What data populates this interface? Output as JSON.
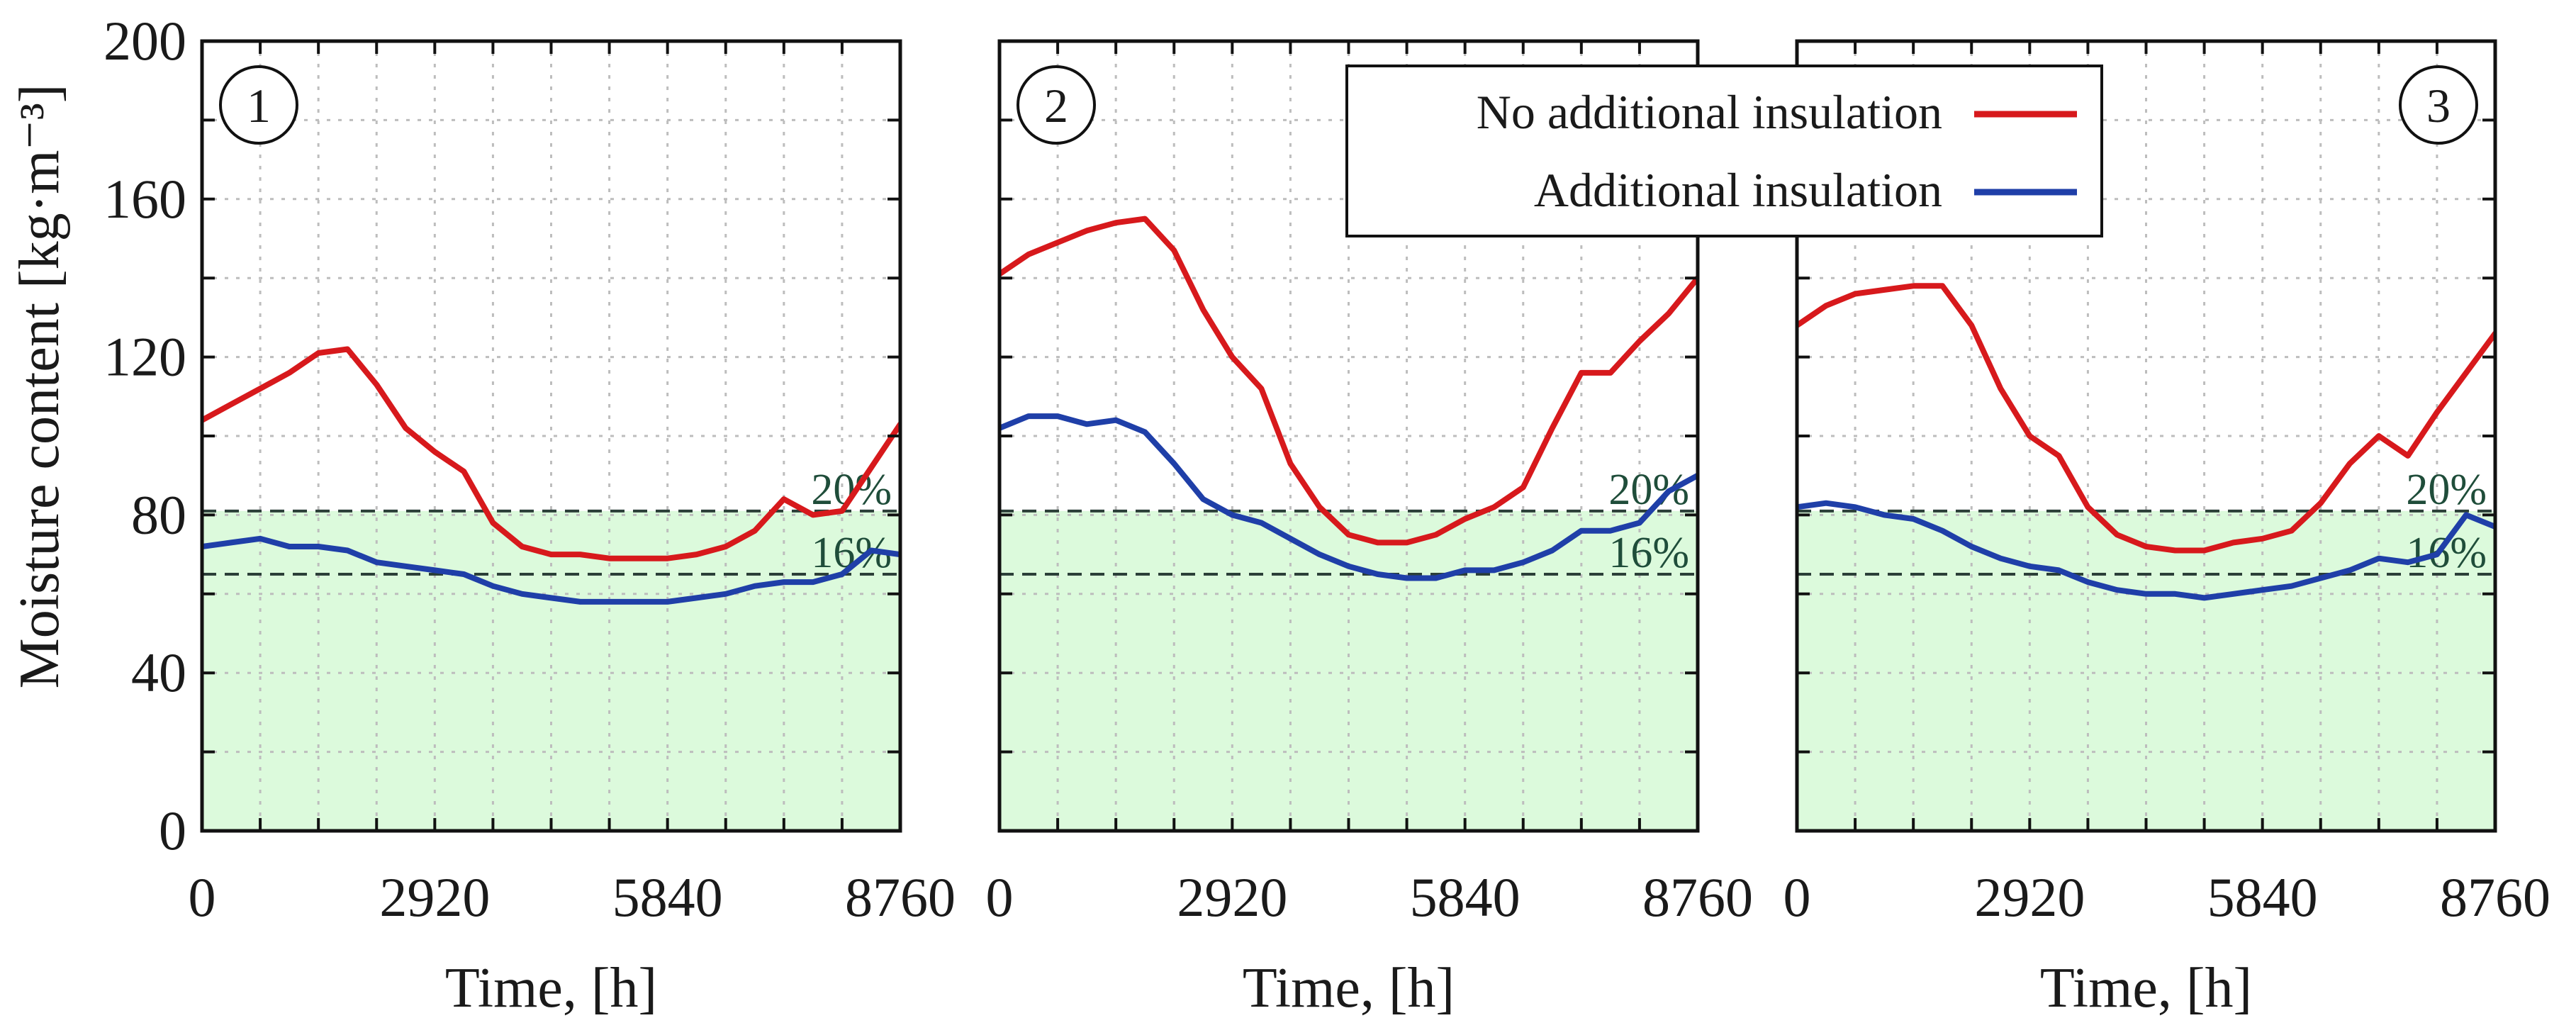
{
  "chart_data": {
    "type": "line",
    "xlabel": "Time, [h]",
    "ylabel": "Moisture content [kg·m⁻³]",
    "xlim": [
      0,
      8760
    ],
    "ylim": [
      0,
      200
    ],
    "xticks": [
      0,
      2920,
      5840,
      8760
    ],
    "xtick_labels": [
      "0",
      "2920",
      "5840",
      "8760"
    ],
    "yticks": [
      0,
      40,
      80,
      120,
      160,
      200
    ],
    "ytick_labels": [
      "0",
      "40",
      "80",
      "120",
      "160",
      "200"
    ],
    "grid": true,
    "legend": {
      "position": "top-center",
      "entries": [
        {
          "label": "No additional insulation",
          "color": "#d7191c"
        },
        {
          "label": "Additional insulation",
          "color": "#1f3fa8"
        }
      ]
    },
    "shaded_region": {
      "from": 0,
      "to": 81,
      "color": "#dcfadc"
    },
    "thresholds": [
      {
        "label": "20%",
        "value": 81
      },
      {
        "label": "16%",
        "value": 65
      }
    ],
    "panels": [
      {
        "label": "1",
        "series": [
          {
            "name": "No additional insulation",
            "x": [
              0,
              365,
              730,
              1095,
              1460,
              1825,
              2190,
              2555,
              2920,
              3285,
              3650,
              4015,
              4380,
              4745,
              5110,
              5475,
              5840,
              6205,
              6570,
              6935,
              7300,
              7665,
              8030,
              8395,
              8760
            ],
            "y": [
              104,
              108,
              112,
              116,
              121,
              122,
              113,
              102,
              96,
              91,
              78,
              72,
              70,
              70,
              69,
              69,
              69,
              70,
              72,
              76,
              84,
              80,
              81,
              92,
              103
            ]
          },
          {
            "name": "Additional insulation",
            "x": [
              0,
              365,
              730,
              1095,
              1460,
              1825,
              2190,
              2555,
              2920,
              3285,
              3650,
              4015,
              4380,
              4745,
              5110,
              5475,
              5840,
              6205,
              6570,
              6935,
              7300,
              7665,
              8030,
              8395,
              8760
            ],
            "y": [
              72,
              73,
              74,
              72,
              72,
              71,
              68,
              67,
              66,
              65,
              62,
              60,
              59,
              58,
              58,
              58,
              58,
              59,
              60,
              62,
              63,
              63,
              65,
              71,
              70
            ]
          }
        ]
      },
      {
        "label": "2",
        "series": [
          {
            "name": "No additional insulation",
            "x": [
              0,
              365,
              730,
              1095,
              1460,
              1825,
              2190,
              2555,
              2920,
              3285,
              3650,
              4015,
              4380,
              4745,
              5110,
              5475,
              5840,
              6205,
              6570,
              6935,
              7300,
              7665,
              8030,
              8395,
              8760
            ],
            "y": [
              141,
              146,
              149,
              152,
              154,
              155,
              147,
              132,
              120,
              112,
              93,
              82,
              75,
              73,
              73,
              75,
              79,
              82,
              87,
              102,
              116,
              116,
              124,
              131,
              140
            ]
          },
          {
            "name": "Additional insulation",
            "x": [
              0,
              365,
              730,
              1095,
              1460,
              1825,
              2190,
              2555,
              2920,
              3285,
              3650,
              4015,
              4380,
              4745,
              5110,
              5475,
              5840,
              6205,
              6570,
              6935,
              7300,
              7665,
              8030,
              8395,
              8760
            ],
            "y": [
              102,
              105,
              105,
              103,
              104,
              101,
              93,
              84,
              80,
              78,
              74,
              70,
              67,
              65,
              64,
              64,
              66,
              66,
              68,
              71,
              76,
              76,
              78,
              86,
              90
            ]
          }
        ]
      },
      {
        "label": "3",
        "series": [
          {
            "name": "No additional insulation",
            "x": [
              0,
              365,
              730,
              1095,
              1460,
              1825,
              2190,
              2555,
              2920,
              3285,
              3650,
              4015,
              4380,
              4745,
              5110,
              5475,
              5840,
              6205,
              6570,
              6935,
              7300,
              7665,
              8030,
              8395,
              8760
            ],
            "y": [
              128,
              133,
              136,
              137,
              138,
              138,
              128,
              112,
              100,
              95,
              82,
              75,
              72,
              71,
              71,
              73,
              74,
              76,
              83,
              93,
              100,
              95,
              106,
              116,
              126
            ]
          },
          {
            "name": "Additional insulation",
            "x": [
              0,
              365,
              730,
              1095,
              1460,
              1825,
              2190,
              2555,
              2920,
              3285,
              3650,
              4015,
              4380,
              4745,
              5110,
              5475,
              5840,
              6205,
              6570,
              6935,
              7300,
              7665,
              8030,
              8395,
              8760
            ],
            "y": [
              82,
              83,
              82,
              80,
              79,
              76,
              72,
              69,
              67,
              66,
              63,
              61,
              60,
              60,
              59,
              60,
              61,
              62,
              64,
              66,
              69,
              68,
              70,
              80,
              77
            ]
          }
        ]
      }
    ]
  }
}
